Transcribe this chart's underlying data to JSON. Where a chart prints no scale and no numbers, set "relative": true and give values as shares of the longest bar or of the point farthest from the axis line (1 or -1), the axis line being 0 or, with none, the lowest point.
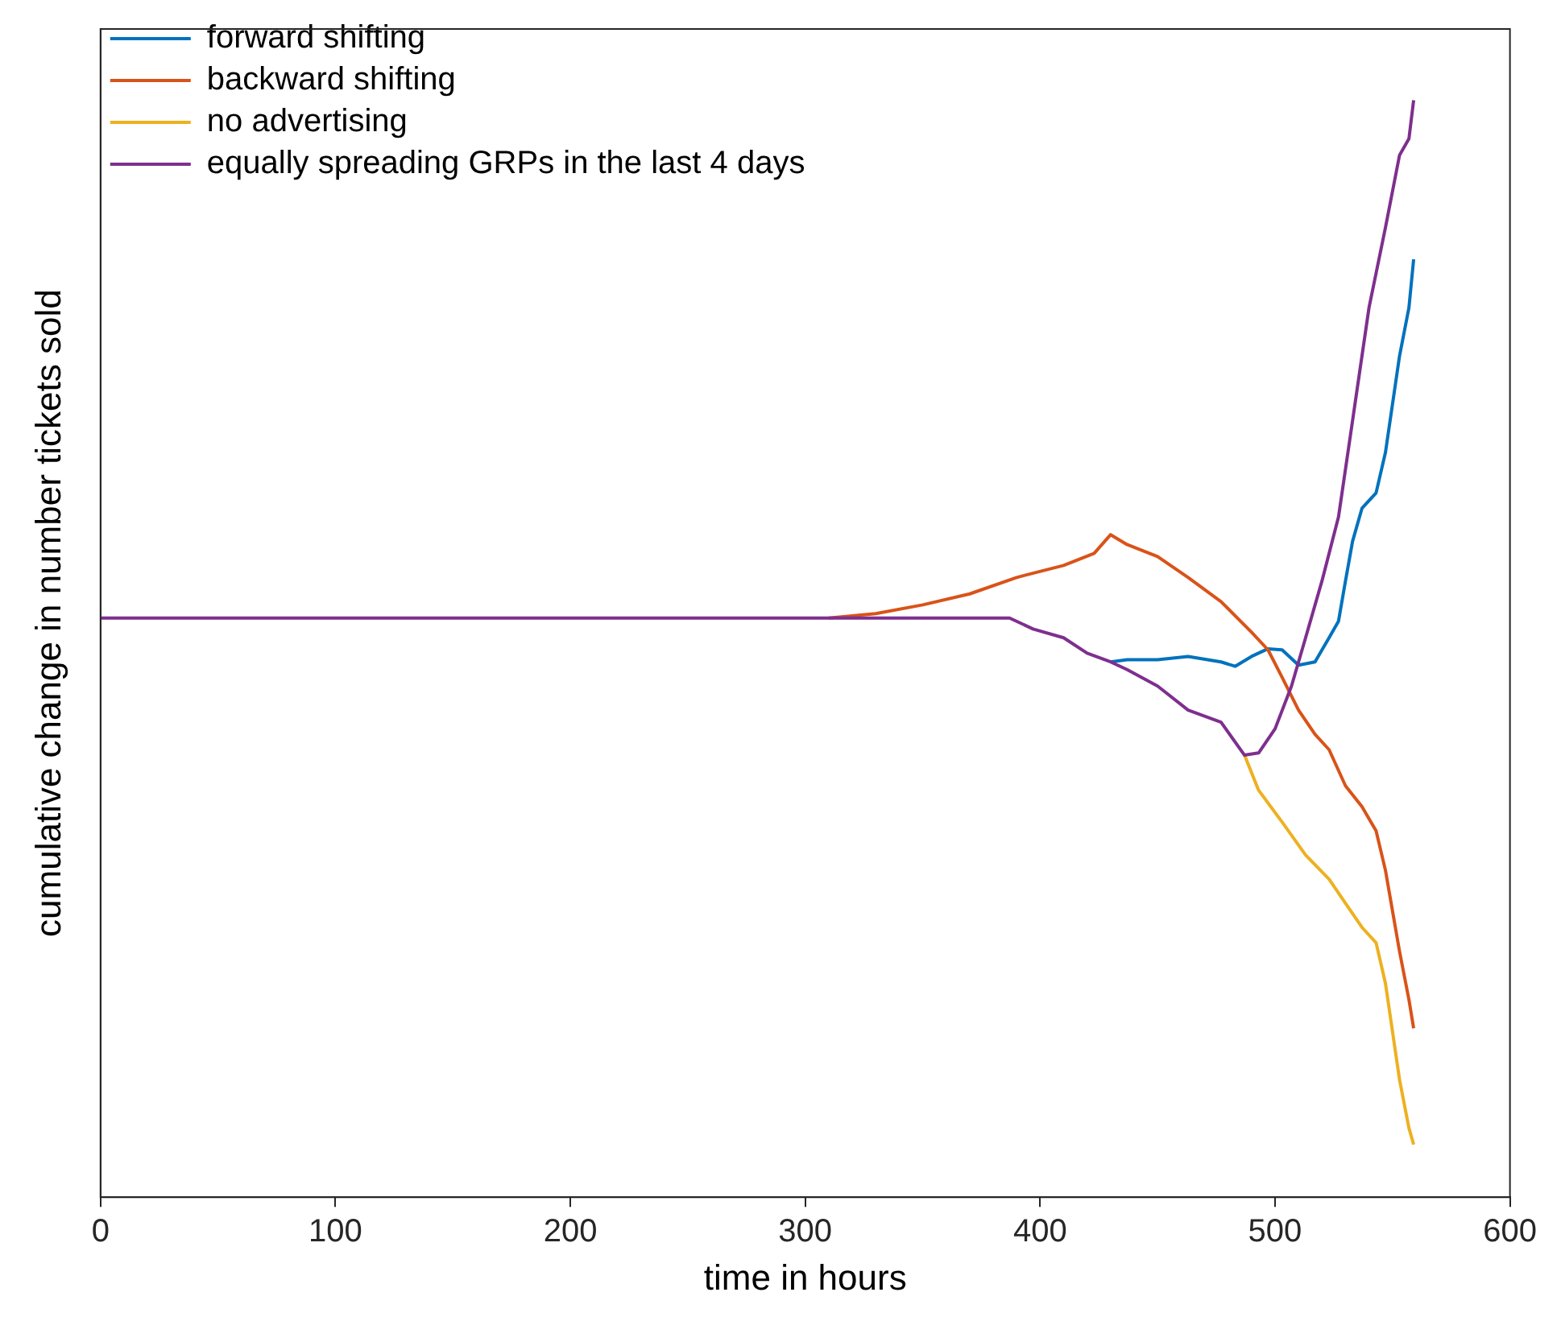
{
  "chart_data": {
    "type": "line",
    "relative": true,
    "xlabel": "time in hours",
    "ylabel": "cumulative change in number tickets sold",
    "xlim": [
      0,
      600
    ],
    "xticks": [
      0,
      100,
      200,
      300,
      400,
      500,
      600
    ],
    "tick_labels": "x",
    "legend": "top left",
    "grid": false,
    "marker": "none",
    "line_style": "solid",
    "series": [
      {
        "name": "forward shifting",
        "color": "#0072bd",
        "x": [
          430,
          437,
          450,
          463,
          477,
          483,
          490,
          497,
          503,
          510,
          517,
          523,
          527,
          530,
          533,
          537,
          543,
          547,
          550,
          553,
          557,
          559
        ],
        "values": [
          0.488,
          0.49,
          0.49,
          0.493,
          0.488,
          0.484,
          0.493,
          0.5,
          0.499,
          0.485,
          0.488,
          0.51,
          0.525,
          0.562,
          0.598,
          0.628,
          0.642,
          0.679,
          0.723,
          0.767,
          0.811,
          0.855
        ]
      },
      {
        "name": "backward shifting",
        "color": "#d95319",
        "x": [
          310,
          330,
          350,
          370,
          390,
          410,
          423,
          430,
          437,
          450,
          463,
          477,
          490,
          497,
          503,
          510,
          517,
          523,
          530,
          537,
          543,
          547,
          550,
          553,
          557,
          559
        ],
        "values": [
          0.528,
          0.532,
          0.54,
          0.55,
          0.565,
          0.576,
          0.587,
          0.604,
          0.595,
          0.584,
          0.565,
          0.543,
          0.515,
          0.499,
          0.474,
          0.444,
          0.422,
          0.408,
          0.375,
          0.356,
          0.334,
          0.298,
          0.261,
          0.224,
          0.18,
          0.154
        ]
      },
      {
        "name": "no advertising",
        "color": "#edb120",
        "x": [
          487,
          493,
          503,
          513,
          523,
          530,
          537,
          543,
          547,
          550,
          553,
          557,
          559
        ],
        "values": [
          0.403,
          0.371,
          0.342,
          0.312,
          0.29,
          0.268,
          0.246,
          0.232,
          0.195,
          0.151,
          0.107,
          0.063,
          0.048
        ]
      },
      {
        "name": "equally spreading GRPs in the last 4 days",
        "color": "#7e2f8e",
        "x": [
          0,
          387,
          397,
          410,
          420,
          430,
          437,
          450,
          463,
          477,
          487,
          493,
          500,
          507,
          513,
          520,
          527,
          533,
          540,
          547,
          553,
          557,
          559
        ],
        "values": [
          0.528,
          0.528,
          0.518,
          0.51,
          0.496,
          0.488,
          0.481,
          0.466,
          0.444,
          0.433,
          0.403,
          0.405,
          0.427,
          0.466,
          0.51,
          0.562,
          0.62,
          0.708,
          0.811,
          0.884,
          0.95,
          0.965,
          1
        ]
      }
    ]
  }
}
